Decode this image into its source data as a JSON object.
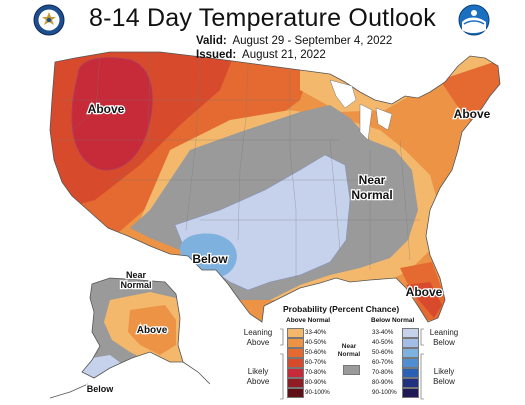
{
  "title": "8-14 Day Temperature Outlook",
  "valid_label": "Valid:",
  "valid_dates": "August 29 - September 4, 2022",
  "issued_label": "Issued:",
  "issued_date": "August 21, 2022",
  "map_labels": {
    "above_west": "Above",
    "above_northeast": "Above",
    "above_florida": "Above",
    "near_normal_midwest_1": "Near",
    "near_normal_midwest_2": "Normal",
    "below_texas": "Below",
    "near_normal_alaska_1": "Near",
    "near_normal_alaska_2": "Normal",
    "above_alaska": "Above",
    "below_alaska": "Below"
  },
  "legend": {
    "title": "Probability (Percent Chance)",
    "above_header": "Above Normal",
    "below_header": "Below Normal",
    "leaning_above_1": "Leaning",
    "leaning_above_2": "Above",
    "likely_above_1": "Likely",
    "likely_above_2": "Above",
    "near_normal_1": "Near",
    "near_normal_2": "Normal",
    "leaning_below_1": "Leaning",
    "leaning_below_2": "Below",
    "likely_below_1": "Likely",
    "likely_below_2": "Below",
    "above": [
      {
        "pct": "33-40%",
        "color": "#f3b86c"
      },
      {
        "pct": "40-50%",
        "color": "#ec9346"
      },
      {
        "pct": "50-60%",
        "color": "#e46a31"
      },
      {
        "pct": "60-70%",
        "color": "#d84a2c"
      },
      {
        "pct": "70-80%",
        "color": "#c72a38"
      },
      {
        "pct": "80-90%",
        "color": "#8f1d23"
      },
      {
        "pct": "90-100%",
        "color": "#5e1016"
      }
    ],
    "near_color": "#9a9a9a",
    "below": [
      {
        "pct": "33-40%",
        "color": "#c6d2ec"
      },
      {
        "pct": "40-50%",
        "color": "#a4bde6"
      },
      {
        "pct": "50-60%",
        "color": "#7fb1df"
      },
      {
        "pct": "60-70%",
        "color": "#4e8ed1"
      },
      {
        "pct": "70-80%",
        "color": "#2b61b5"
      },
      {
        "pct": "80-90%",
        "color": "#21307f"
      },
      {
        "pct": "90-100%",
        "color": "#1f1a55"
      }
    ]
  }
}
